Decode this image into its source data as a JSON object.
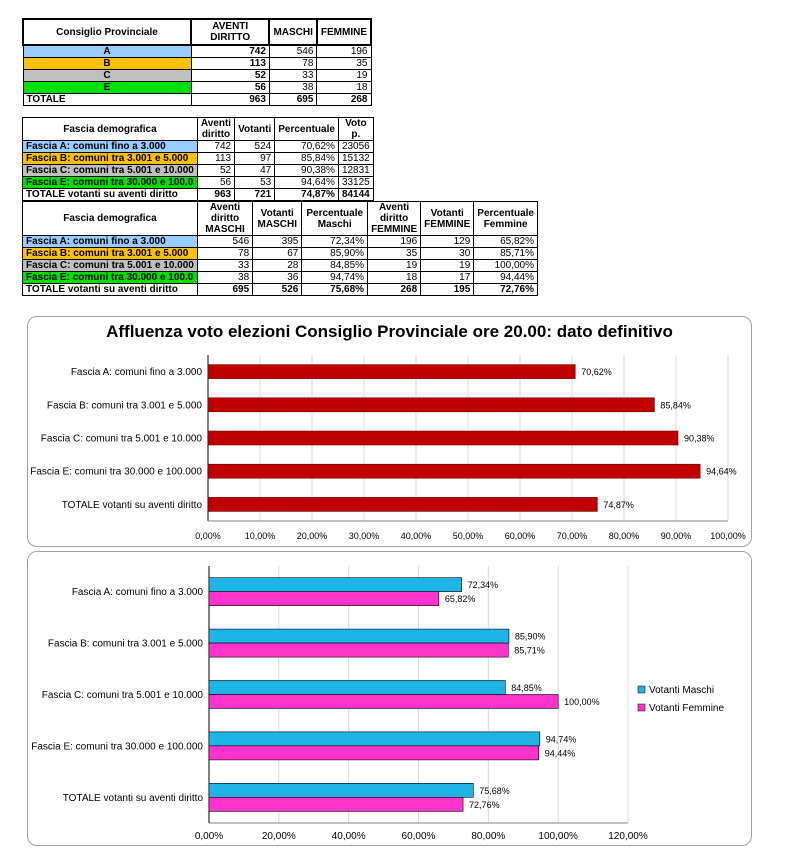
{
  "table1": {
    "headers": [
      "Consiglio Provinciale",
      "AVENTI DIRITTO",
      "MASCHI",
      "FEMMINE"
    ],
    "rows": [
      {
        "label": "A",
        "values": [
          "742",
          "546",
          "196"
        ],
        "bg": "#99ccff"
      },
      {
        "label": "B",
        "values": [
          "113",
          "78",
          "35"
        ],
        "bg": "#ffc000"
      },
      {
        "label": "C",
        "values": [
          "52",
          "33",
          "19"
        ],
        "bg": "#c0c0c0"
      },
      {
        "label": "E",
        "values": [
          "56",
          "38",
          "18"
        ],
        "bg": "#00e000"
      }
    ],
    "total": {
      "label": "TOTALE",
      "values": [
        "963",
        "695",
        "268"
      ]
    }
  },
  "table2": {
    "headers": [
      "Fascia demografica",
      "Aventi diritto",
      "Votanti",
      "Percentuale",
      "Voto p."
    ],
    "rows": [
      {
        "label": "Fascia A: comuni fino a 3.000",
        "values": [
          "742",
          "524",
          "70,62%",
          "23056"
        ]
      },
      {
        "label": "Fascia B: comuni tra 3.001 e 5.000",
        "values": [
          "113",
          "97",
          "85,84%",
          "15132"
        ]
      },
      {
        "label": "Fascia C: comuni tra 5.001 e 10.000",
        "values": [
          "52",
          "47",
          "90,38%",
          "12831"
        ]
      },
      {
        "label": "Fascia E: comuni tra 30.000 e 100.0",
        "values": [
          "56",
          "53",
          "94,64%",
          "33125"
        ]
      }
    ],
    "total": {
      "label": "TOTALE votanti su aventi diritto",
      "values": [
        "963",
        "721",
        "74,87%",
        "84144"
      ]
    }
  },
  "table3": {
    "headers": [
      "Fascia demografica",
      "Aventi diritto MASCHI",
      "Votanti MASCHI",
      "Percentuale Maschi",
      "Aventi diritto FEMMINE",
      "Votanti FEMMINE",
      "Percentuale Femmine"
    ],
    "rows": [
      {
        "label": "Fascia A: comuni fino a 3.000",
        "values": [
          "546",
          "395",
          "72,34%",
          "196",
          "129",
          "65,82%"
        ]
      },
      {
        "label": "Fascia B: comuni tra 3.001 e 5.000",
        "values": [
          "78",
          "67",
          "85,90%",
          "35",
          "30",
          "85,71%"
        ]
      },
      {
        "label": "Fascia C: comuni tra 5.001 e 10.000",
        "values": [
          "33",
          "28",
          "84,85%",
          "19",
          "19",
          "100,00%"
        ]
      },
      {
        "label": "Fascia E: comuni tra 30.000 e 100.0",
        "values": [
          "38",
          "36",
          "94,74%",
          "18",
          "17",
          "94,44%"
        ]
      }
    ],
    "total": {
      "label": "TOTALE votanti su aventi diritto",
      "values": [
        "695",
        "526",
        "75,68%",
        "268",
        "195",
        "72,76%"
      ]
    }
  },
  "chart_data": [
    {
      "type": "bar",
      "orientation": "horizontal",
      "title": "Affluenza voto elezioni Consiglio Provinciale ore 20.00: dato definitivo",
      "categories": [
        "Fascia A: comuni fino a 3.000",
        "Fascia B: comuni tra 3.001 e 5.000",
        "Fascia C: comuni tra 5.001 e 10.000",
        "Fascia E: comuni tra 30.000 e 100.000",
        "TOTALE votanti su aventi diritto"
      ],
      "values": [
        70.62,
        85.84,
        90.38,
        94.64,
        74.87
      ],
      "value_labels": [
        "70,62%",
        "85,84%",
        "90,38%",
        "94,64%",
        "74,87%"
      ],
      "color": "#c00000",
      "xlim": [
        0,
        100
      ],
      "x_ticks": [
        "0,00%",
        "10,00%",
        "20,00%",
        "30,00%",
        "40,00%",
        "50,00%",
        "60,00%",
        "70,00%",
        "80,00%",
        "90,00%",
        "100,00%"
      ],
      "grid": true
    },
    {
      "type": "bar",
      "orientation": "horizontal",
      "title": "",
      "categories": [
        "Fascia A: comuni fino a 3.000",
        "Fascia B: comuni tra 3.001 e 5.000",
        "Fascia C: comuni tra 5.001 e 10.000",
        "Fascia E: comuni tra 30.000 e 100.000",
        "TOTALE votanti su aventi diritto"
      ],
      "series": [
        {
          "name": "Votanti Maschi",
          "color": "#1fb4e6",
          "values": [
            72.34,
            85.9,
            84.85,
            94.74,
            75.68
          ],
          "labels": [
            "72,34%",
            "85,90%",
            "84,85%",
            "94,74%",
            "75,68%"
          ]
        },
        {
          "name": "Votanti Femmine",
          "color": "#ff33cc",
          "values": [
            65.82,
            85.71,
            100.0,
            94.44,
            72.76
          ],
          "labels": [
            "65,82%",
            "85,71%",
            "100,00%",
            "94,44%",
            "72,76%"
          ]
        }
      ],
      "xlim": [
        0,
        120
      ],
      "x_ticks": [
        "0,00%",
        "20,00%",
        "40,00%",
        "60,00%",
        "80,00%",
        "100,00%",
        "120,00%"
      ],
      "legend": "right",
      "grid": true
    }
  ]
}
